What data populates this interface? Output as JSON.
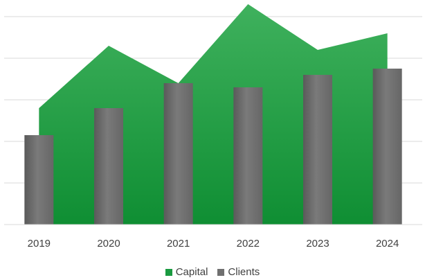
{
  "chart_data": {
    "type": "bar",
    "categories": [
      "2019",
      "2020",
      "2021",
      "2022",
      "2023",
      "2024"
    ],
    "series": [
      {
        "name": "Capital",
        "kind": "area",
        "color": "#1a9a40",
        "values": [
          28,
          43,
          34,
          53,
          42,
          46
        ]
      },
      {
        "name": "Clients",
        "kind": "bar",
        "color": "#6f6f6f",
        "values": [
          21.5,
          28,
          34,
          33,
          36,
          37.5
        ]
      }
    ],
    "ylim": [
      0,
      53
    ],
    "grid": true,
    "legend_position": "bottom"
  }
}
